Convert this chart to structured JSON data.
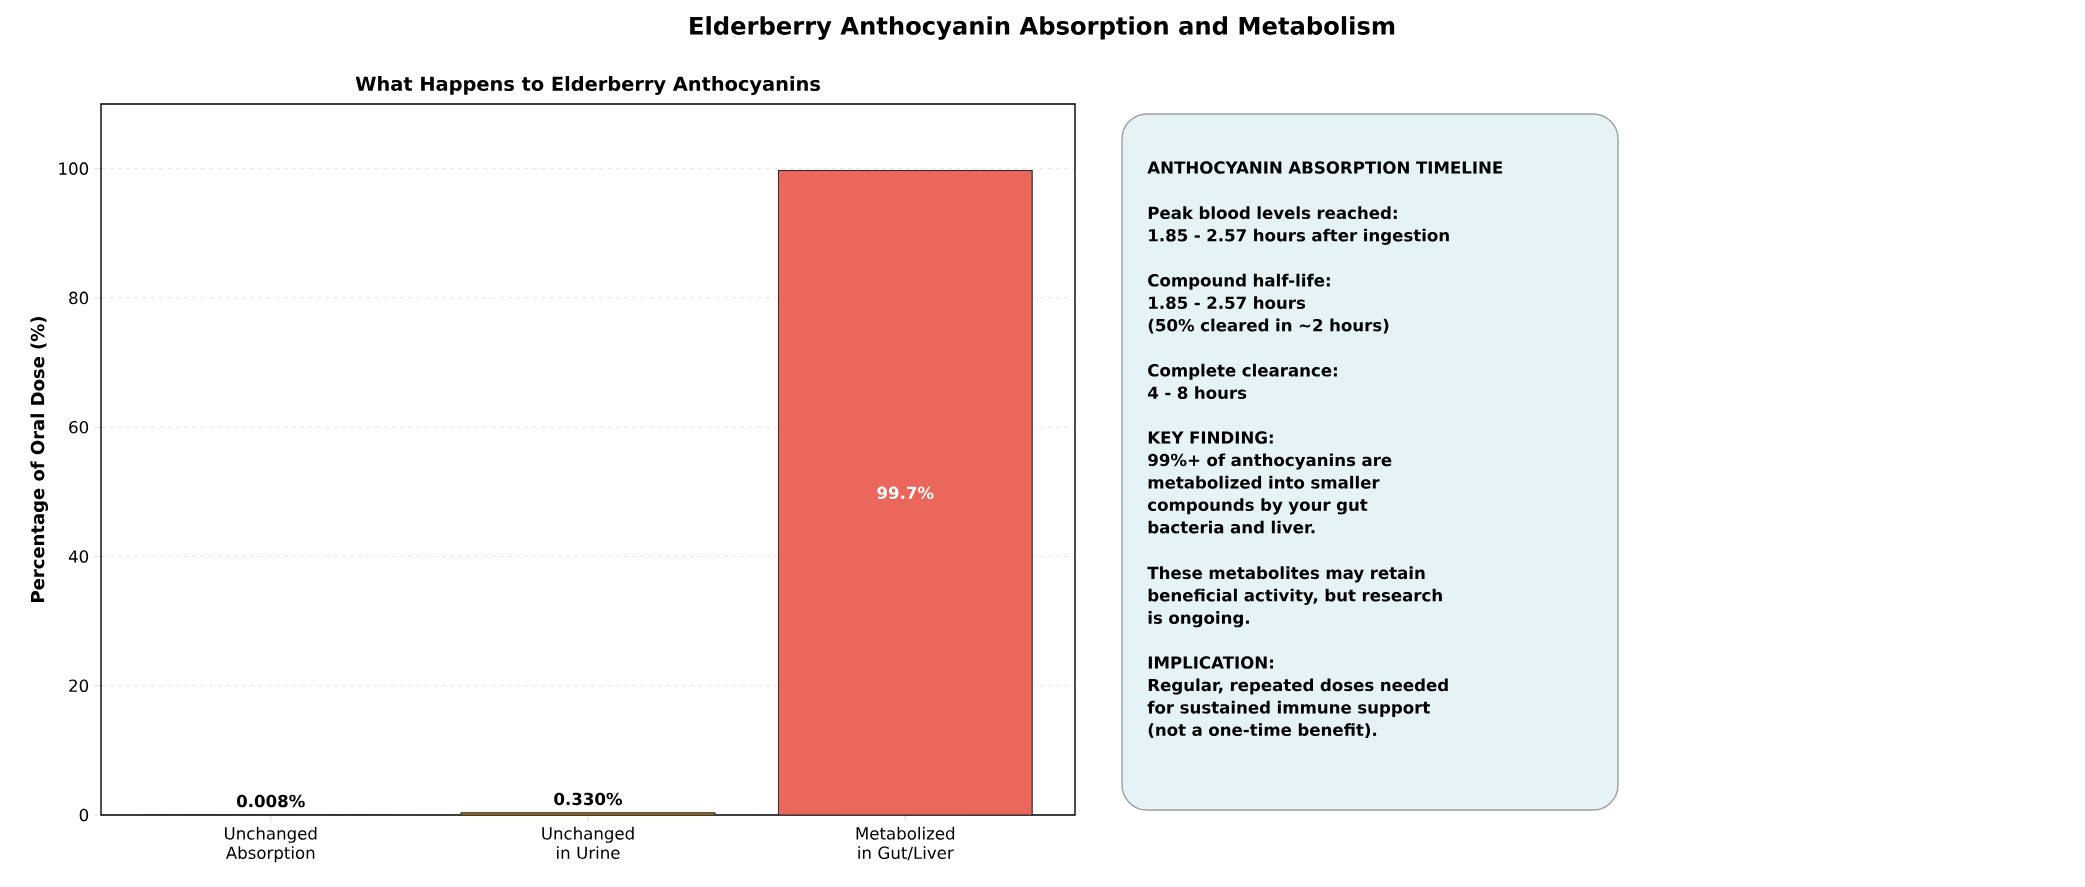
{
  "chart_data": [
    {
      "type": "bar",
      "title": "Elderberry Anthocyanin Absorption and Metabolism",
      "subtitle": "What Happens to Elderberry Anthocyanins",
      "ylabel": "Percentage of Oral Dose (%)",
      "categories": [
        "Unchanged\nAbsorption",
        "Unchanged\nin Urine",
        "Metabolized\nin Gut/Liver"
      ],
      "values": [
        0.008,
        0.33,
        99.7
      ],
      "colors": [
        "#3498db",
        "#f39c12",
        "#ec675b"
      ],
      "value_labels": [
        "0.008%",
        "0.330%",
        "99.7%"
      ],
      "ylim": [
        0,
        110
      ],
      "yticks": [
        0,
        20,
        40,
        60,
        80,
        100
      ],
      "grid": "y"
    },
    {
      "type": "other",
      "annotations": [
        "ANTHOCYANIN ABSORPTION TIMELINE",
        "Peak blood levels reached:\n1.85 - 2.57 hours after ingestion",
        "Compound half-life:\n1.85 - 2.57 hours\n(50% cleared in ~2 hours)",
        "Complete clearance:\n4 - 8 hours",
        "KEY FINDING:\n99%+ of anthocyanins are\nmetabolized into smaller\ncompounds by your gut\nbacteria and liver.",
        "These metabolites may retain\nbeneficial activity, but research\nis ongoing.",
        "IMPLICATION:\nRegular, repeated doses needed\nfor sustained immune support\n(not a one-time benefit)."
      ]
    }
  ]
}
